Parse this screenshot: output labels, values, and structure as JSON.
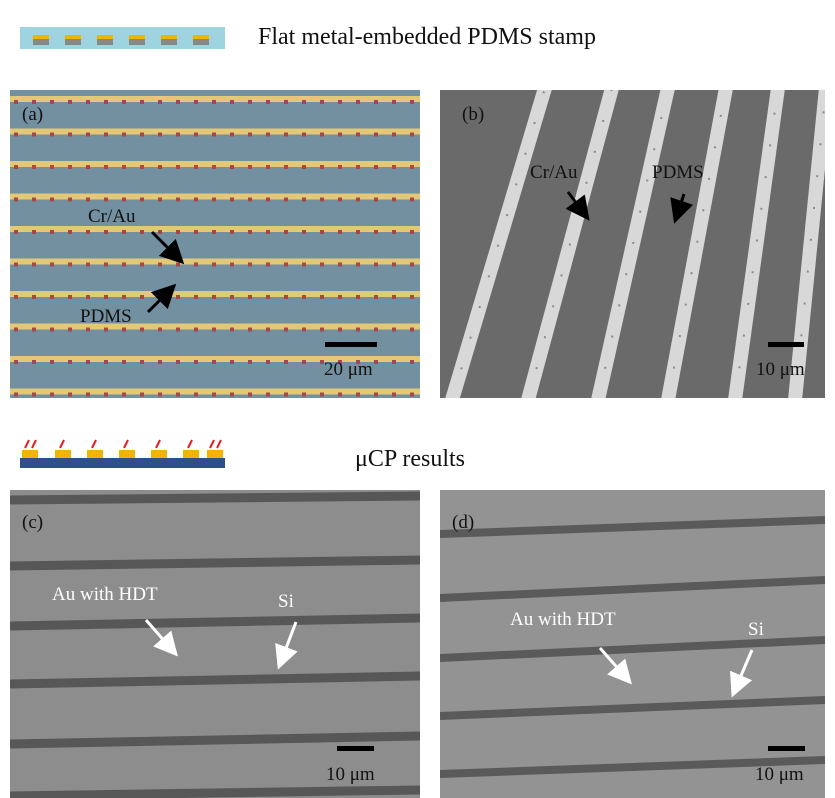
{
  "header": {
    "stamp_title": "Flat metal-embedded PDMS stamp",
    "results_title": "μCP results"
  },
  "panels": [
    {
      "label": "(a)",
      "annotations": [
        "Cr/Au",
        "PDMS"
      ],
      "scale_bar": "20 μm"
    },
    {
      "label": "(b)",
      "annotations": [
        "Cr/Au",
        "PDMS"
      ],
      "scale_bar": "10 μm"
    },
    {
      "label": "(c)",
      "annotations": [
        "Au with HDT",
        "Si"
      ],
      "scale_bar": "10 μm"
    },
    {
      "label": "(d)",
      "annotations": [
        "Au with HDT",
        "Si"
      ],
      "scale_bar": "10 μm"
    }
  ]
}
